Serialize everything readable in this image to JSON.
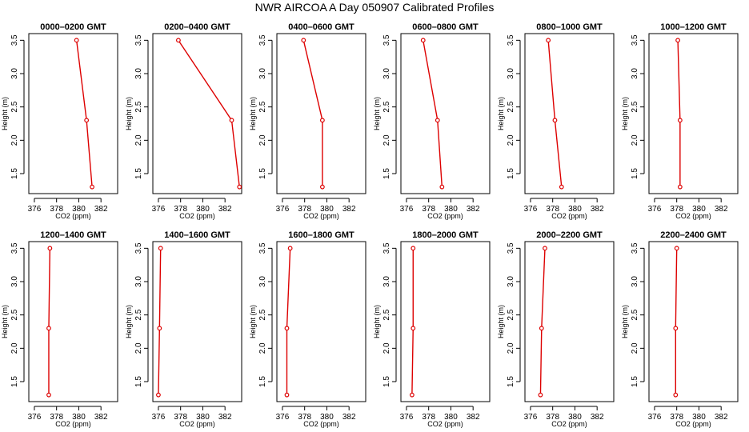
{
  "title": "NWR AIRCOA A  Day 050907  Calibrated Profiles",
  "colors": {
    "series": "#dd0000",
    "axis": "#000000"
  },
  "chart_data": {
    "type": "line",
    "title": "NWR AIRCOA A  Day 050907  Calibrated Profiles",
    "xlabel": "CO2 (ppm)",
    "ylabel": "Height (m)",
    "xlim": [
      375.5,
      383.5
    ],
    "ylim": [
      1.2,
      3.6
    ],
    "x_ticks": [
      376,
      378,
      380,
      382
    ],
    "y_ticks": [
      1.5,
      2.0,
      2.5,
      3.0,
      3.5
    ],
    "heights": [
      3.5,
      2.3,
      1.3
    ],
    "panels": [
      {
        "title": "0000–0200 GMT",
        "co2": [
          379.8,
          380.7,
          381.2
        ]
      },
      {
        "title": "0200–0400 GMT",
        "co2": [
          377.8,
          382.6,
          383.3
        ]
      },
      {
        "title": "0400–0600 GMT",
        "co2": [
          377.9,
          379.6,
          379.6
        ]
      },
      {
        "title": "0600–0800 GMT",
        "co2": [
          377.5,
          378.8,
          379.2
        ]
      },
      {
        "title": "0800–1000 GMT",
        "co2": [
          377.6,
          378.2,
          378.8
        ]
      },
      {
        "title": "1000–1200 GMT",
        "co2": [
          378.1,
          378.3,
          378.3
        ]
      },
      {
        "title": "1200–1400 GMT",
        "co2": [
          377.4,
          377.3,
          377.3
        ]
      },
      {
        "title": "1400–1600 GMT",
        "co2": [
          376.2,
          376.1,
          376.0
        ]
      },
      {
        "title": "1600–1800 GMT",
        "co2": [
          376.7,
          376.4,
          376.4
        ]
      },
      {
        "title": "1800–2000 GMT",
        "co2": [
          376.6,
          376.6,
          376.5
        ]
      },
      {
        "title": "2000–2200 GMT",
        "co2": [
          377.3,
          377.0,
          376.9
        ]
      },
      {
        "title": "2200–2400 GMT",
        "co2": [
          378.0,
          377.9,
          377.9
        ]
      }
    ]
  }
}
